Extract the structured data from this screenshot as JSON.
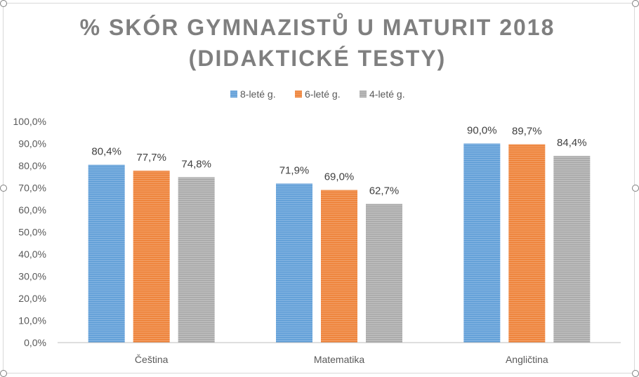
{
  "chart_data": {
    "type": "bar",
    "title_lines": [
      "% SKÓR GYMNAZISTŮ U MATURIT 2018",
      "(DIDAKTICKÉ TESTY)"
    ],
    "categories": [
      "Čeština",
      "Matematika",
      "Angličtina"
    ],
    "series": [
      {
        "name": "8-leté g.",
        "values": [
          80.4,
          71.9,
          90.0
        ],
        "labels": [
          "80,4%",
          "71,9%",
          "90,0%"
        ],
        "color": "#5b9bd5",
        "stripe": "#8fbbe6"
      },
      {
        "name": "6-leté g.",
        "values": [
          77.7,
          69.0,
          89.7
        ],
        "labels": [
          "77,7%",
          "69,0%",
          "89,7%"
        ],
        "color": "#ed7d31",
        "stripe": "#f4a873"
      },
      {
        "name": "4-leté g.",
        "values": [
          74.8,
          62.7,
          84.4
        ],
        "labels": [
          "74,8%",
          "62,7%",
          "84,4%"
        ],
        "color": "#a5a5a5",
        "stripe": "#c9c9c9"
      }
    ],
    "yticks": [
      "0,0%",
      "10,0%",
      "20,0%",
      "30,0%",
      "40,0%",
      "50,0%",
      "60,0%",
      "70,0%",
      "80,0%",
      "90,0%",
      "100,0%"
    ],
    "ylim": [
      0,
      100
    ],
    "grid": false,
    "legend_position": "top"
  }
}
